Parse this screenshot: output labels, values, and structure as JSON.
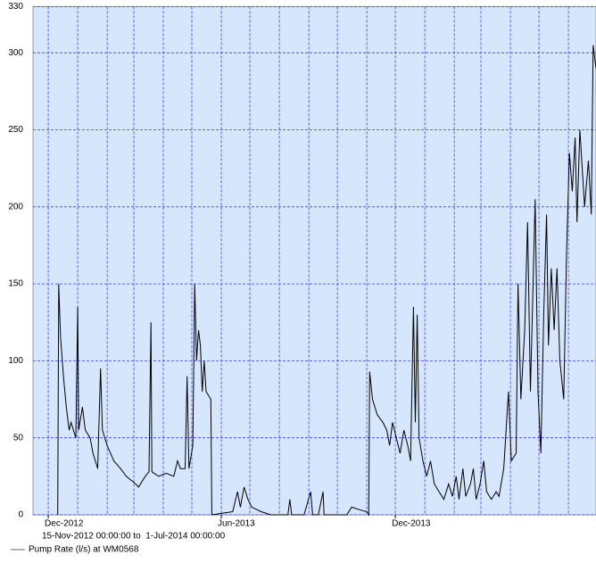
{
  "chart_data": {
    "type": "line",
    "range_text": "15-Nov-2012 00:00:00 to  1-Jul-2014 00:00:00",
    "x": [
      26,
      27,
      29,
      32,
      35,
      38,
      40,
      45,
      47,
      48,
      52,
      55,
      60,
      63,
      68,
      71,
      73,
      78,
      85,
      92,
      98,
      104,
      108,
      111,
      118,
      122,
      124,
      125,
      132,
      140,
      148,
      152,
      155,
      160,
      162,
      164,
      168,
      170,
      172,
      174,
      176,
      178,
      180,
      182,
      187,
      188,
      210,
      215,
      218,
      222,
      226,
      230,
      240,
      250,
      268,
      270,
      272,
      285,
      292,
      294,
      300,
      305,
      306,
      330,
      335,
      345,
      351,
      353,
      354,
      357,
      362,
      368,
      372,
      375,
      378,
      382,
      386,
      390,
      394,
      397,
      400,
      402,
      404,
      406,
      410,
      414,
      418,
      422,
      427,
      432,
      437,
      441,
      445,
      448,
      452,
      455,
      460,
      463,
      466,
      470,
      474,
      477,
      482,
      487,
      490,
      495,
      500,
      503,
      508,
      510,
      513,
      517,
      520,
      523,
      528,
      531,
      534,
      537,
      540,
      542,
      545,
      548,
      551,
      554,
      558,
      561,
      564,
      567,
      570,
      572,
      575,
      580,
      584,
      587,
      589,
      592
    ],
    "series": [
      {
        "name": "Pump Rate (l/s) at WM0568",
        "color": "#000000",
        "values": [
          0,
          150,
          115,
          90,
          70,
          55,
          60,
          50,
          135,
          55,
          70,
          55,
          50,
          40,
          30,
          95,
          55,
          45,
          35,
          30,
          25,
          22,
          20,
          18,
          25,
          28,
          125,
          28,
          25,
          27,
          25,
          35,
          30,
          30,
          90,
          30,
          45,
          150,
          100,
          120,
          110,
          80,
          100,
          80,
          75,
          0,
          2,
          15,
          5,
          18,
          10,
          5,
          2,
          0,
          0,
          10,
          0,
          0,
          15,
          0,
          0,
          15,
          0,
          0,
          5,
          3,
          2,
          0,
          93,
          75,
          65,
          60,
          55,
          45,
          60,
          50,
          40,
          55,
          45,
          35,
          135,
          60,
          130,
          50,
          35,
          25,
          35,
          20,
          15,
          10,
          20,
          12,
          25,
          10,
          30,
          12,
          20,
          30,
          10,
          20,
          35,
          15,
          10,
          15,
          12,
          30,
          80,
          35,
          40,
          150,
          75,
          120,
          190,
          80,
          205,
          80,
          40,
          130,
          195,
          110,
          160,
          120,
          160,
          100,
          75,
          170,
          235,
          210,
          245,
          190,
          250,
          200,
          230,
          195,
          305,
          290
        ]
      }
    ],
    "xlim": [
      0,
      592
    ],
    "xticks": [
      {
        "value": 16,
        "label": "Dec-2012"
      },
      {
        "value": 198,
        "label": "Jun-2013"
      },
      {
        "value": 381,
        "label": "Dec-2013"
      }
    ],
    "xgrid": [
      16,
      47,
      78,
      106,
      137,
      167,
      198,
      228,
      259,
      290,
      320,
      351,
      381,
      412,
      443,
      471,
      502,
      532,
      563
    ],
    "ylim": [
      0,
      330
    ],
    "yticks": [
      0,
      50,
      100,
      150,
      200,
      250,
      300,
      330
    ],
    "grid": true,
    "background": "#d6e6fc",
    "grid_color": "#3c3cf0"
  }
}
